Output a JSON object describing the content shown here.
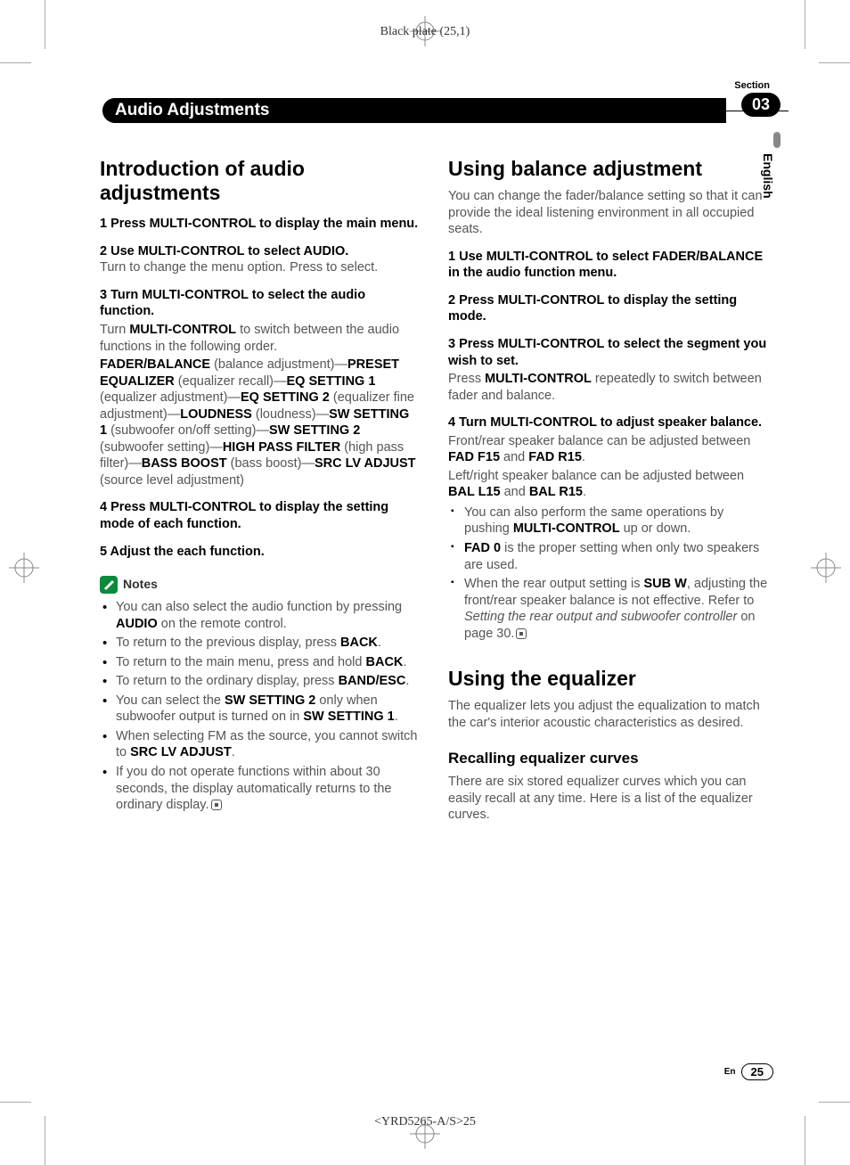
{
  "meta": {
    "plate_label": "Black plate (25,1)",
    "footer_id": "<YRD5265-A/S>25"
  },
  "header": {
    "section_label": "Section",
    "section_number": "03",
    "title": "Audio Adjustments",
    "language_tab": "English"
  },
  "left": {
    "h1": "Introduction of audio adjustments",
    "steps": [
      {
        "lead": "1   Press MULTI-CONTROL to display the main menu.",
        "body": ""
      },
      {
        "lead": "2   Use MULTI-CONTROL to select AUDIO.",
        "body": "Turn to change the menu option. Press to select."
      },
      {
        "lead": "3   Turn MULTI-CONTROL to select the audio function.",
        "body": ""
      },
      {
        "lead": "4   Press MULTI-CONTROL to display the setting mode of each function.",
        "body": ""
      },
      {
        "lead": "5   Adjust the each function.",
        "body": ""
      }
    ],
    "step3_intro": "Turn ",
    "step3_b1": "MULTI-CONTROL",
    "step3_tail": " to switch between the audio functions in the following order.",
    "chain": [
      {
        "b": "FADER/BALANCE",
        "t": " (balance adjustment)—"
      },
      {
        "b": "PRESET EQUALIZER",
        "t": " (equalizer recall)—"
      },
      {
        "b": "EQ SETTING 1",
        "t": " (equalizer adjustment)—"
      },
      {
        "b": "EQ SETTING 2",
        "t": " (equalizer fine adjustment)—"
      },
      {
        "b": "LOUDNESS",
        "t": " (loudness)—"
      },
      {
        "b": "SW SETTING 1",
        "t": " (subwoofer on/off setting)—"
      },
      {
        "b": "SW SETTING 2",
        "t": " (subwoofer setting)—"
      },
      {
        "b": "HIGH PASS FILTER",
        "t": " (high pass filter)—"
      },
      {
        "b": "BASS BOOST",
        "t": " (bass boost)—"
      },
      {
        "b": "SRC LV ADJUST",
        "t": " (source level adjustment)"
      }
    ],
    "notes_label": "Notes",
    "notes": [
      {
        "pre": "You can also select the audio function by pressing ",
        "b": "AUDIO",
        "post": " on the remote control."
      },
      {
        "pre": "To return to the previous display, press ",
        "b": "BACK",
        "post": "."
      },
      {
        "pre": "To return to the main menu, press and hold ",
        "b": "BACK",
        "post": "."
      },
      {
        "pre": "To return to the ordinary display, press ",
        "b": "BAND/ESC",
        "post": "."
      },
      {
        "pre": "You can select the ",
        "b": "SW SETTING 2",
        "post": " only when subwoofer output is turned on in ",
        "b2": "SW SETTING 1",
        "post2": "."
      },
      {
        "pre": "When selecting FM as the source, you cannot switch to ",
        "b": "SRC LV ADJUST",
        "post": "."
      },
      {
        "pre": "If you do not operate functions within about 30 seconds, the display automatically returns to the ordinary display.",
        "b": "",
        "post": "",
        "end": true
      }
    ]
  },
  "right": {
    "sec1": {
      "h1": "Using balance adjustment",
      "intro": "You can change the fader/balance setting so that it can provide the ideal listening environment in all occupied seats.",
      "steps": [
        {
          "lead": "1   Use MULTI-CONTROL to select FADER/BALANCE in the audio function menu."
        },
        {
          "lead": "2   Press MULTI-CONTROL to display the setting mode."
        },
        {
          "lead": "3   Press MULTI-CONTROL to select the segment you wish to set."
        },
        {
          "lead": "4   Turn MULTI-CONTROL to adjust speaker balance."
        }
      ],
      "s3_pre": "Press ",
      "s3_b": "MULTI-CONTROL",
      "s3_post": " repeatedly to switch between fader and balance.",
      "s4_l1_pre": "Front/rear speaker balance can be adjusted between ",
      "s4_l1_b1": "FAD F15",
      "s4_l1_mid": " and ",
      "s4_l1_b2": "FAD R15",
      "s4_l1_post": ".",
      "s4_l2_pre": "Left/right speaker balance can be adjusted between ",
      "s4_l2_b1": "BAL L15",
      "s4_l2_mid": " and ",
      "s4_l2_b2": "BAL R15",
      "s4_l2_post": ".",
      "bullets": [
        {
          "pre": "You can also perform the same operations by pushing ",
          "b": "MULTI-CONTROL",
          "post": " up or down."
        },
        {
          "pre": "",
          "b": "FAD 0",
          "post": " is the proper setting when only two speakers are used."
        },
        {
          "pre": "When the rear output setting is ",
          "b": "SUB W",
          "post": ", adjusting the front/rear speaker balance is not effective. Refer to ",
          "i": "Setting the rear output and subwoofer controller",
          "post2": " on page 30.",
          "end": true
        }
      ]
    },
    "sec2": {
      "h1": "Using the equalizer",
      "intro": "The equalizer lets you adjust the equalization to match the car's interior acoustic characteristics as desired.",
      "h2": "Recalling equalizer curves",
      "p": "There are six stored equalizer curves which you can easily recall at any time. Here is a list of the equalizer curves."
    }
  },
  "footer": {
    "lang": "En",
    "page": "25"
  },
  "colors": {
    "text": "#333333",
    "muted": "#555555",
    "black": "#000000",
    "notes_icon": "#0a8a3a",
    "lang_bar": "#888888"
  }
}
